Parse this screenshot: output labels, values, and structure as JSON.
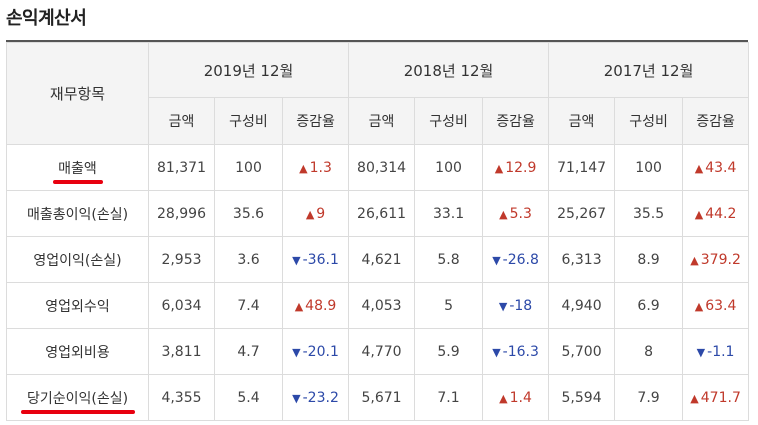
{
  "title": "손익계산서",
  "header": {
    "item_col": "재무항목",
    "years": [
      "2019년 12월",
      "2018년 12월",
      "2017년 12월"
    ],
    "sub_cols": [
      "금액",
      "구성비",
      "증감율"
    ]
  },
  "rows": [
    {
      "label": "매출액",
      "highlighted": true,
      "cells": [
        {
          "amount": "81,371",
          "ratio": "100",
          "change": "1.3",
          "dir": "up"
        },
        {
          "amount": "80,314",
          "ratio": "100",
          "change": "12.9",
          "dir": "up"
        },
        {
          "amount": "71,147",
          "ratio": "100",
          "change": "43.4",
          "dir": "up"
        }
      ]
    },
    {
      "label": "매출총이익(손실)",
      "highlighted": false,
      "cells": [
        {
          "amount": "28,996",
          "ratio": "35.6",
          "change": "9",
          "dir": "up"
        },
        {
          "amount": "26,611",
          "ratio": "33.1",
          "change": "5.3",
          "dir": "up"
        },
        {
          "amount": "25,267",
          "ratio": "35.5",
          "change": "44.2",
          "dir": "up"
        }
      ]
    },
    {
      "label": "영업이익(손실)",
      "highlighted": false,
      "cells": [
        {
          "amount": "2,953",
          "ratio": "3.6",
          "change": "-36.1",
          "dir": "down"
        },
        {
          "amount": "4,621",
          "ratio": "5.8",
          "change": "-26.8",
          "dir": "down"
        },
        {
          "amount": "6,313",
          "ratio": "8.9",
          "change": "379.2",
          "dir": "up"
        }
      ]
    },
    {
      "label": "영업외수익",
      "highlighted": false,
      "cells": [
        {
          "amount": "6,034",
          "ratio": "7.4",
          "change": "48.9",
          "dir": "up"
        },
        {
          "amount": "4,053",
          "ratio": "5",
          "change": "-18",
          "dir": "down"
        },
        {
          "amount": "4,940",
          "ratio": "6.9",
          "change": "63.4",
          "dir": "up"
        }
      ]
    },
    {
      "label": "영업외비용",
      "highlighted": false,
      "cells": [
        {
          "amount": "3,811",
          "ratio": "4.7",
          "change": "-20.1",
          "dir": "down"
        },
        {
          "amount": "4,770",
          "ratio": "5.9",
          "change": "-16.3",
          "dir": "down"
        },
        {
          "amount": "5,700",
          "ratio": "8",
          "change": "-1.1",
          "dir": "down"
        }
      ]
    },
    {
      "label": "당기순이익(손실)",
      "highlighted": true,
      "cells": [
        {
          "amount": "4,355",
          "ratio": "5.4",
          "change": "-23.2",
          "dir": "down"
        },
        {
          "amount": "5,671",
          "ratio": "7.1",
          "change": "1.4",
          "dir": "up"
        },
        {
          "amount": "5,594",
          "ratio": "7.9",
          "change": "471.7",
          "dir": "up"
        }
      ]
    }
  ],
  "colors": {
    "up": "#c0392b",
    "down": "#2c49a8",
    "highlight": "#e8000f"
  },
  "icons": {
    "up": "triangle-up-icon",
    "down": "triangle-down-icon"
  }
}
